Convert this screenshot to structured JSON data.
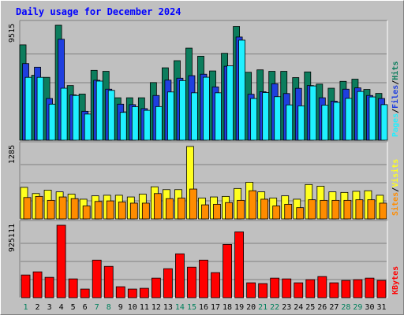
{
  "chart_data": {
    "type": "bar",
    "title": "Daily usage for December 2024",
    "days": [
      "1",
      "2",
      "3",
      "4",
      "5",
      "6",
      "7",
      "8",
      "9",
      "10",
      "11",
      "12",
      "13",
      "14",
      "15",
      "16",
      "17",
      "18",
      "19",
      "20",
      "21",
      "22",
      "23",
      "24",
      "25",
      "26",
      "27",
      "28",
      "29",
      "30",
      "31"
    ],
    "weekend_days": [
      "1",
      "7",
      "8",
      "14",
      "15",
      "21",
      "22",
      "28",
      "29"
    ],
    "colors": {
      "hits": "#0c7d5d",
      "files": "#1f3fdf",
      "pages": "#1ff0ff",
      "visits": "#ffff1f",
      "sites": "#ff8c00",
      "kbytes": "#ff0000",
      "weekday_label": "#000000",
      "weekend_label": "#00805c",
      "title": "#0000ff",
      "grid": "#808080"
    },
    "panels": [
      {
        "name": "hits-files-pages",
        "ymax_label": "9515",
        "ymax": 9515,
        "right_labels": [
          {
            "text": "Pages",
            "color": "#1ff0ff"
          },
          {
            "text": "/",
            "color": "#000000"
          },
          {
            "text": "Files",
            "color": "#1f3fdf"
          },
          {
            "text": "/",
            "color": "#000000"
          },
          {
            "text": "Hits",
            "color": "#0c7d5d"
          }
        ],
        "series": [
          {
            "name": "Hits",
            "key": "hits",
            "values": [
              7890,
              5370,
              5200,
              9515,
              4520,
              3820,
              5780,
              5700,
              3510,
              3510,
              3510,
              4770,
              5990,
              6580,
              7620,
              6950,
              5730,
              7190,
              9415,
              5620,
              5820,
              5700,
              5700,
              5180,
              5650,
              4640,
              4300,
              4870,
              5050,
              4200,
              3870
            ]
          },
          {
            "name": "Files",
            "key": "files",
            "values": [
              6340,
              6040,
              3450,
              8350,
              3750,
              2390,
              4960,
              4220,
              2980,
              2940,
              2610,
              3700,
              4970,
              5130,
              5340,
              5460,
              4410,
              6120,
              8540,
              3800,
              4010,
              4670,
              3860,
              4290,
              4520,
              3510,
              3230,
              4220,
              4330,
              3700,
              3450
            ]
          },
          {
            "name": "Pages",
            "key": "pages",
            "values": [
              5200,
              5200,
              2980,
              4300,
              3700,
              2160,
              4890,
              4120,
              2300,
              2770,
              2470,
              2780,
              3990,
              4930,
              3920,
              5210,
              3920,
              6150,
              8280,
              3450,
              3940,
              3600,
              2920,
              2840,
              4490,
              2900,
              3130,
              3460,
              4030,
              3580,
              2940
            ]
          }
        ]
      },
      {
        "name": "visits-sites",
        "ymax_label": "1285",
        "ymax": 1285,
        "right_labels": [
          {
            "text": "Sites",
            "color": "#ff8c00"
          },
          {
            "text": "/",
            "color": "#000000"
          },
          {
            "text": "Visits",
            "color": "#ffff1f"
          }
        ],
        "series": [
          {
            "name": "Visits",
            "key": "visits",
            "values": [
              560,
              450,
              510,
              480,
              440,
              350,
              410,
              420,
              420,
              390,
              440,
              570,
              520,
              520,
              1285,
              370,
              390,
              400,
              540,
              650,
              480,
              370,
              410,
              350,
              610,
              580,
              480,
              470,
              490,
              500,
              420
            ]
          },
          {
            "name": "Sites",
            "key": "sites",
            "values": [
              380,
              400,
              330,
              390,
              360,
              230,
              310,
              320,
              300,
              280,
              280,
              450,
              360,
              370,
              530,
              250,
              260,
              290,
              330,
              500,
              350,
              230,
              260,
              200,
              340,
              330,
              330,
              330,
              340,
              340,
              280
            ]
          }
        ]
      },
      {
        "name": "kbytes",
        "ymax_label": "925111",
        "ymax": 925111,
        "right_labels": [
          {
            "text": "KBytes",
            "color": "#ff0000"
          }
        ],
        "series": [
          {
            "name": "KBytes",
            "key": "kbytes",
            "values": [
              290000,
              330000,
              260000,
              925111,
              240000,
              110000,
              480000,
              400000,
              140000,
              110000,
              120000,
              250000,
              370000,
              560000,
              390000,
              480000,
              320000,
              680000,
              840000,
              190000,
              180000,
              250000,
              240000,
              190000,
              230000,
              270000,
              190000,
              220000,
              230000,
              250000,
              220000
            ]
          }
        ]
      }
    ]
  }
}
